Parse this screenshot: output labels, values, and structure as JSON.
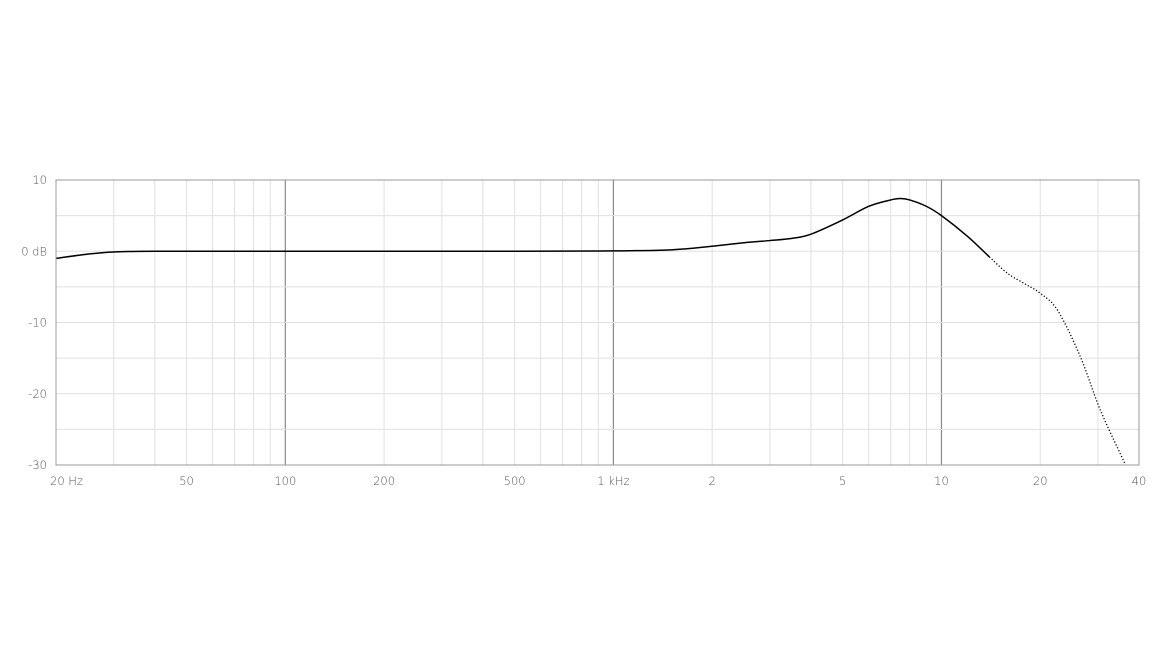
{
  "chart_data": {
    "type": "line",
    "title": "",
    "xlabel": "",
    "ylabel": "",
    "x_scale": "log",
    "xlim": [
      20,
      40000
    ],
    "ylim": [
      -30,
      10
    ],
    "grid": true,
    "x_ticks": [
      {
        "value": 20,
        "label": "20 Hz"
      },
      {
        "value": 50,
        "label": "50"
      },
      {
        "value": 100,
        "label": "100"
      },
      {
        "value": 200,
        "label": "200"
      },
      {
        "value": 500,
        "label": "500"
      },
      {
        "value": 1000,
        "label": "1 kHz"
      },
      {
        "value": 2000,
        "label": "2"
      },
      {
        "value": 5000,
        "label": "5"
      },
      {
        "value": 10000,
        "label": "10"
      },
      {
        "value": 20000,
        "label": "20"
      },
      {
        "value": 40000,
        "label": "40"
      }
    ],
    "y_ticks": [
      {
        "value": 10,
        "label": "10"
      },
      {
        "value": 0,
        "label": "0 dB"
      },
      {
        "value": -10,
        "label": "-10"
      },
      {
        "value": -20,
        "label": "-20"
      },
      {
        "value": -30,
        "label": "-30"
      }
    ],
    "series": [
      {
        "style": "solid",
        "color": "#000000",
        "x": [
          20,
          25,
          30,
          40,
          100,
          500,
          1000,
          1500,
          2000,
          2500,
          3000,
          3500,
          4000,
          5000,
          6000,
          7000,
          7500,
          8000,
          9000,
          10000,
          12000,
          14000
        ],
        "y": [
          -1.0,
          -0.4,
          -0.1,
          0,
          0,
          0,
          0.05,
          0.2,
          0.7,
          1.2,
          1.5,
          1.8,
          2.4,
          4.4,
          6.3,
          7.2,
          7.4,
          7.2,
          6.3,
          5.0,
          2.1,
          -0.8
        ]
      },
      {
        "style": "dotted",
        "color": "#000000",
        "x": [
          14000,
          15900,
          18000,
          20000,
          22600,
          26500,
          30500,
          36400
        ],
        "y": [
          -0.8,
          -3.1,
          -4.6,
          -5.9,
          -8.3,
          -14.8,
          -22.3,
          -30.0
        ]
      }
    ]
  }
}
